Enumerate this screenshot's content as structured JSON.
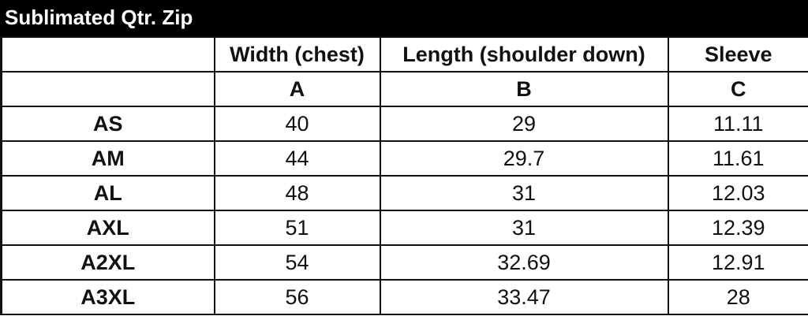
{
  "title": "Sublimated Qtr. Zip",
  "columns": [
    "",
    "Width (chest)",
    "Length (shoulder down)",
    "Sleeve"
  ],
  "column_codes": [
    "",
    "A",
    "B",
    "C"
  ],
  "rows": [
    {
      "size": "AS",
      "width": "40",
      "length": "29",
      "sleeve": "11.11"
    },
    {
      "size": "AM",
      "width": "44",
      "length": "29.7",
      "sleeve": "11.61"
    },
    {
      "size": "AL",
      "width": "48",
      "length": "31",
      "sleeve": "12.03"
    },
    {
      "size": "AXL",
      "width": "51",
      "length": "31",
      "sleeve": "12.39"
    },
    {
      "size": "A2XL",
      "width": "54",
      "length": "32.69",
      "sleeve": "12.91"
    },
    {
      "size": "A3XL",
      "width": "56",
      "length": "33.47",
      "sleeve": "28"
    }
  ]
}
